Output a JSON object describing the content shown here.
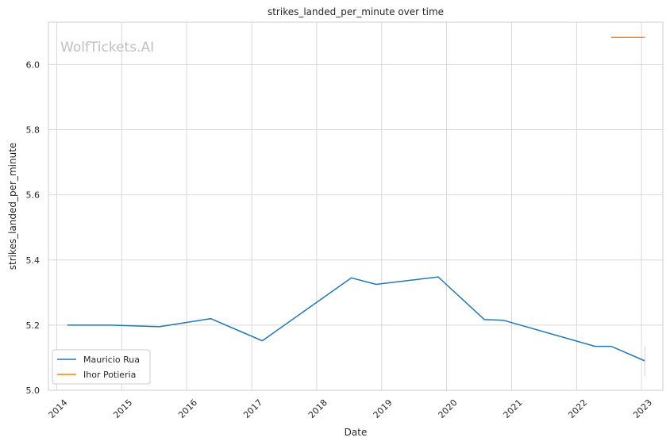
{
  "chart_data": {
    "type": "line",
    "title": "strikes_landed_per_minute over time",
    "xlabel": "Date",
    "ylabel": "strikes_landed_per_minute",
    "watermark": "WolfTickets.AI",
    "x_ticks": [
      "2014",
      "2015",
      "2016",
      "2017",
      "2018",
      "2019",
      "2020",
      "2021",
      "2022",
      "2023"
    ],
    "y_ticks": [
      "5.0",
      "5.2",
      "5.4",
      "5.6",
      "5.8",
      "6.0"
    ],
    "ylim": [
      5.0,
      6.13
    ],
    "xlim": [
      "2013-11-15",
      "2023-05-01"
    ],
    "grid": true,
    "legend_position": "lower-left",
    "series": [
      {
        "name": "Mauricio Rua",
        "color": "#1f77b4",
        "points": [
          {
            "x": "2014-03-01",
            "y": 5.2
          },
          {
            "x": "2014-11-01",
            "y": 5.2
          },
          {
            "x": "2015-08-01",
            "y": 5.195
          },
          {
            "x": "2016-05-15",
            "y": 5.22
          },
          {
            "x": "2017-03-01",
            "y": 5.152
          },
          {
            "x": "2018-07-15",
            "y": 5.345
          },
          {
            "x": "2018-12-01",
            "y": 5.325
          },
          {
            "x": "2019-11-15",
            "y": 5.348
          },
          {
            "x": "2020-08-01",
            "y": 5.217
          },
          {
            "x": "2020-11-15",
            "y": 5.215
          },
          {
            "x": "2022-04-15",
            "y": 5.135
          },
          {
            "x": "2022-07-15",
            "y": 5.135
          },
          {
            "x": "2023-01-20",
            "y": 5.09
          }
        ]
      },
      {
        "name": "Ihor Potieria",
        "color": "#ff7f0e",
        "points": [
          {
            "x": "2022-07-15",
            "y": 6.083
          },
          {
            "x": "2023-01-20",
            "y": 6.083
          }
        ]
      }
    ]
  }
}
